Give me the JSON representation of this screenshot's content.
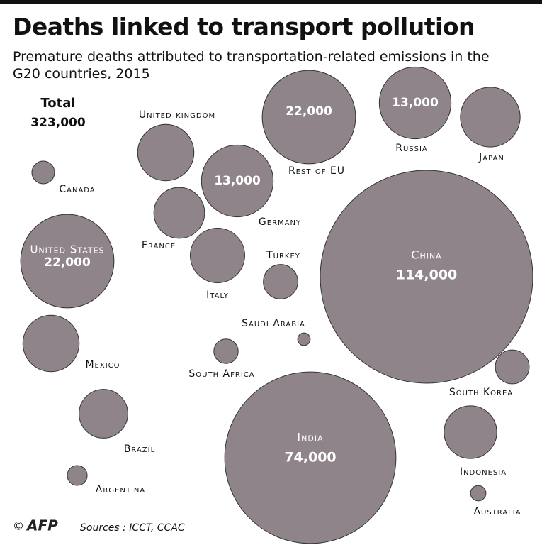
{
  "chart_data": {
    "type": "bubble",
    "title": "Deaths linked to transport pollution",
    "subtitle": "Premature deaths attributed to transportation-related emissions in the G20 countries, 2015",
    "total_title": "Total",
    "total": {
      "value": 323000,
      "label": "323,000"
    },
    "categories": [
      "China",
      "India",
      "United States",
      "Rest of EU",
      "Germany",
      "Russia",
      "Japan",
      "United kingdom",
      "France",
      "Italy",
      "Mexico",
      "Brazil",
      "Canada",
      "Turkey",
      "Saudi Arabia",
      "South Africa",
      "Argentina",
      "South Korea",
      "Indonesia",
      "Australia"
    ],
    "values": [
      114000,
      74000,
      22000,
      22000,
      13000,
      13000,
      9000,
      8000,
      6500,
      7500,
      8000,
      6000,
      1300,
      3000,
      400,
      1500,
      1000,
      2900,
      7000,
      600
    ],
    "value_labels": [
      "114,000",
      "74,000",
      "22,000",
      "22,000",
      "13,000",
      "13,000",
      null,
      null,
      null,
      null,
      null,
      null,
      null,
      null,
      null,
      null,
      null,
      null,
      null,
      null
    ],
    "color": "#8e8489",
    "credit": "AFP",
    "source": "Sources : ICCT, CCAC"
  }
}
